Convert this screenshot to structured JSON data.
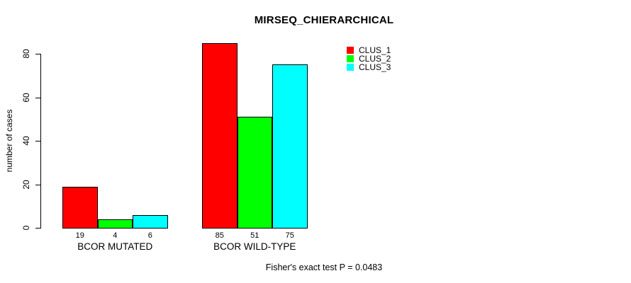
{
  "chart_data": {
    "type": "bar",
    "title": "MIRSEQ_CHIERARCHICAL",
    "ylabel": "number of cases",
    "xlabel": "",
    "categories": [
      "BCOR MUTATED",
      "BCOR WILD-TYPE"
    ],
    "series": [
      {
        "name": "CLUS_1",
        "color": "#FF0000",
        "values": [
          19,
          85
        ]
      },
      {
        "name": "CLUS_2",
        "color": "#00FF00",
        "values": [
          4,
          51
        ]
      },
      {
        "name": "CLUS_3",
        "color": "#00FFFF",
        "values": [
          6,
          75
        ]
      }
    ],
    "bar_value_labels": [
      [
        "19",
        "4",
        "6"
      ],
      [
        "85",
        "51",
        "75"
      ]
    ],
    "yticks": [
      0,
      20,
      40,
      60,
      80
    ],
    "ylim": [
      0,
      85
    ],
    "grid": false,
    "legend_position": "top-right",
    "annotation": "Fisher's exact test P = 0.0483"
  },
  "colors": {
    "axis": "#000000",
    "background": "#FFFFFF",
    "text": "#000000"
  }
}
